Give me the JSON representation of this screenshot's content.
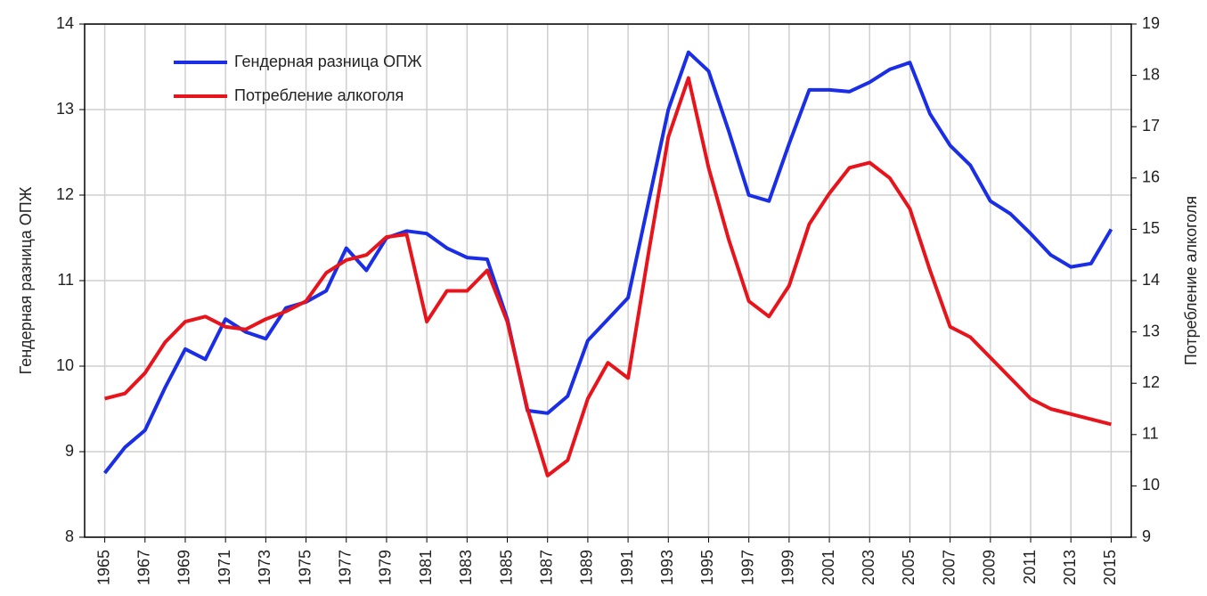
{
  "chart_data": {
    "type": "line",
    "y_label": "Гендерная разница ОПЖ",
    "y2_label": "Потребление алкоголя",
    "x": [
      1965,
      1966,
      1967,
      1968,
      1969,
      1970,
      1971,
      1972,
      1973,
      1974,
      1975,
      1976,
      1977,
      1978,
      1979,
      1980,
      1981,
      1982,
      1983,
      1984,
      1985,
      1986,
      1987,
      1988,
      1989,
      1990,
      1991,
      1992,
      1993,
      1994,
      1995,
      1996,
      1997,
      1998,
      1999,
      2000,
      2001,
      2002,
      2003,
      2004,
      2005,
      2006,
      2007,
      2008,
      2009,
      2010,
      2011,
      2012,
      2013,
      2014,
      2015
    ],
    "series": [
      {
        "name": "Гендерная разница ОПЖ",
        "color": "#1a2ee6",
        "axis": "y",
        "values": [
          8.75,
          9.05,
          9.25,
          9.75,
          10.2,
          10.08,
          10.55,
          10.4,
          10.32,
          10.68,
          10.75,
          10.88,
          11.38,
          11.12,
          11.5,
          11.58,
          11.55,
          11.38,
          11.27,
          11.25,
          10.55,
          9.48,
          9.45,
          9.65,
          10.3,
          10.55,
          10.8,
          11.9,
          13.0,
          13.67,
          13.45,
          12.75,
          12.0,
          11.93,
          12.6,
          13.23,
          13.23,
          13.21,
          13.32,
          13.47,
          13.55,
          12.95,
          12.58,
          12.35,
          11.93,
          11.78,
          11.55,
          11.3,
          11.16,
          11.2,
          11.6
        ]
      },
      {
        "name": "Потребление алкоголя",
        "color": "#e8141c",
        "axis": "y2",
        "values": [
          11.7,
          11.8,
          12.2,
          12.8,
          13.2,
          13.3,
          13.1,
          13.05,
          13.25,
          13.4,
          13.6,
          14.15,
          14.4,
          14.5,
          14.85,
          14.9,
          13.2,
          13.8,
          13.8,
          14.2,
          13.2,
          11.5,
          10.2,
          10.5,
          11.7,
          12.4,
          12.1,
          14.5,
          16.8,
          17.95,
          16.2,
          14.8,
          13.6,
          13.3,
          13.9,
          15.1,
          15.7,
          16.2,
          16.3,
          16.0,
          15.4,
          14.2,
          13.1,
          12.9,
          12.5,
          12.1,
          11.7,
          11.5,
          11.4,
          11.3,
          11.2
        ]
      }
    ],
    "xlim": [
      1964,
      2016
    ],
    "xticks": [
      1965,
      1967,
      1969,
      1971,
      1973,
      1975,
      1977,
      1979,
      1981,
      1983,
      1985,
      1987,
      1989,
      1991,
      1993,
      1995,
      1997,
      1999,
      2001,
      2003,
      2005,
      2007,
      2009,
      2011,
      2013,
      2015
    ],
    "ylim": [
      8,
      14
    ],
    "yticks": [
      8,
      9,
      10,
      11,
      12,
      13,
      14
    ],
    "y2lim": [
      9,
      19
    ],
    "y2ticks": [
      9,
      10,
      11,
      12,
      13,
      14,
      15,
      16,
      17,
      18,
      19
    ],
    "grid": true,
    "legend": "top-left"
  }
}
